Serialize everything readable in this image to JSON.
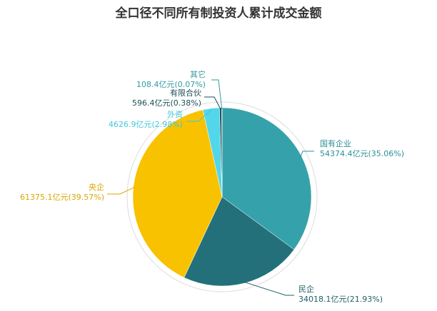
{
  "chart_data": {
    "type": "pie",
    "title": "全口径不同所有制投资人累计成交金额",
    "slices": [
      {
        "name": "国有企业",
        "value_label": "54374.4亿元(35.06%)",
        "value": 54374.4,
        "percent": 35.06,
        "color": "#35a2ab",
        "text_color": "#2b8f96"
      },
      {
        "name": "民企",
        "value_label": "34018.1亿元(21.93%)",
        "value": 34018.1,
        "percent": 21.93,
        "color": "#23707a",
        "text_color": "#1f5f66"
      },
      {
        "name": "央企",
        "value_label": "61375.1亿元(39.57%)",
        "value": 61375.1,
        "percent": 39.57,
        "color": "#f8c200",
        "text_color": "#d8a600"
      },
      {
        "name": "外资",
        "value_label": "4626.9亿元(2.98%)",
        "value": 4626.9,
        "percent": 2.98,
        "color": "#52d6ea",
        "text_color": "#3ec7dc"
      },
      {
        "name": "有限合伙",
        "value_label": "596.4亿元(0.38%)",
        "value": 596.4,
        "percent": 0.38,
        "color": "#1a4f57",
        "text_color": "#1a4f57"
      },
      {
        "name": "其它",
        "value_label": "108.4亿元(0.07%)",
        "value": 108.4,
        "percent": 0.07,
        "color": "#2f9aa3",
        "text_color": "#2f9aa3"
      }
    ]
  }
}
